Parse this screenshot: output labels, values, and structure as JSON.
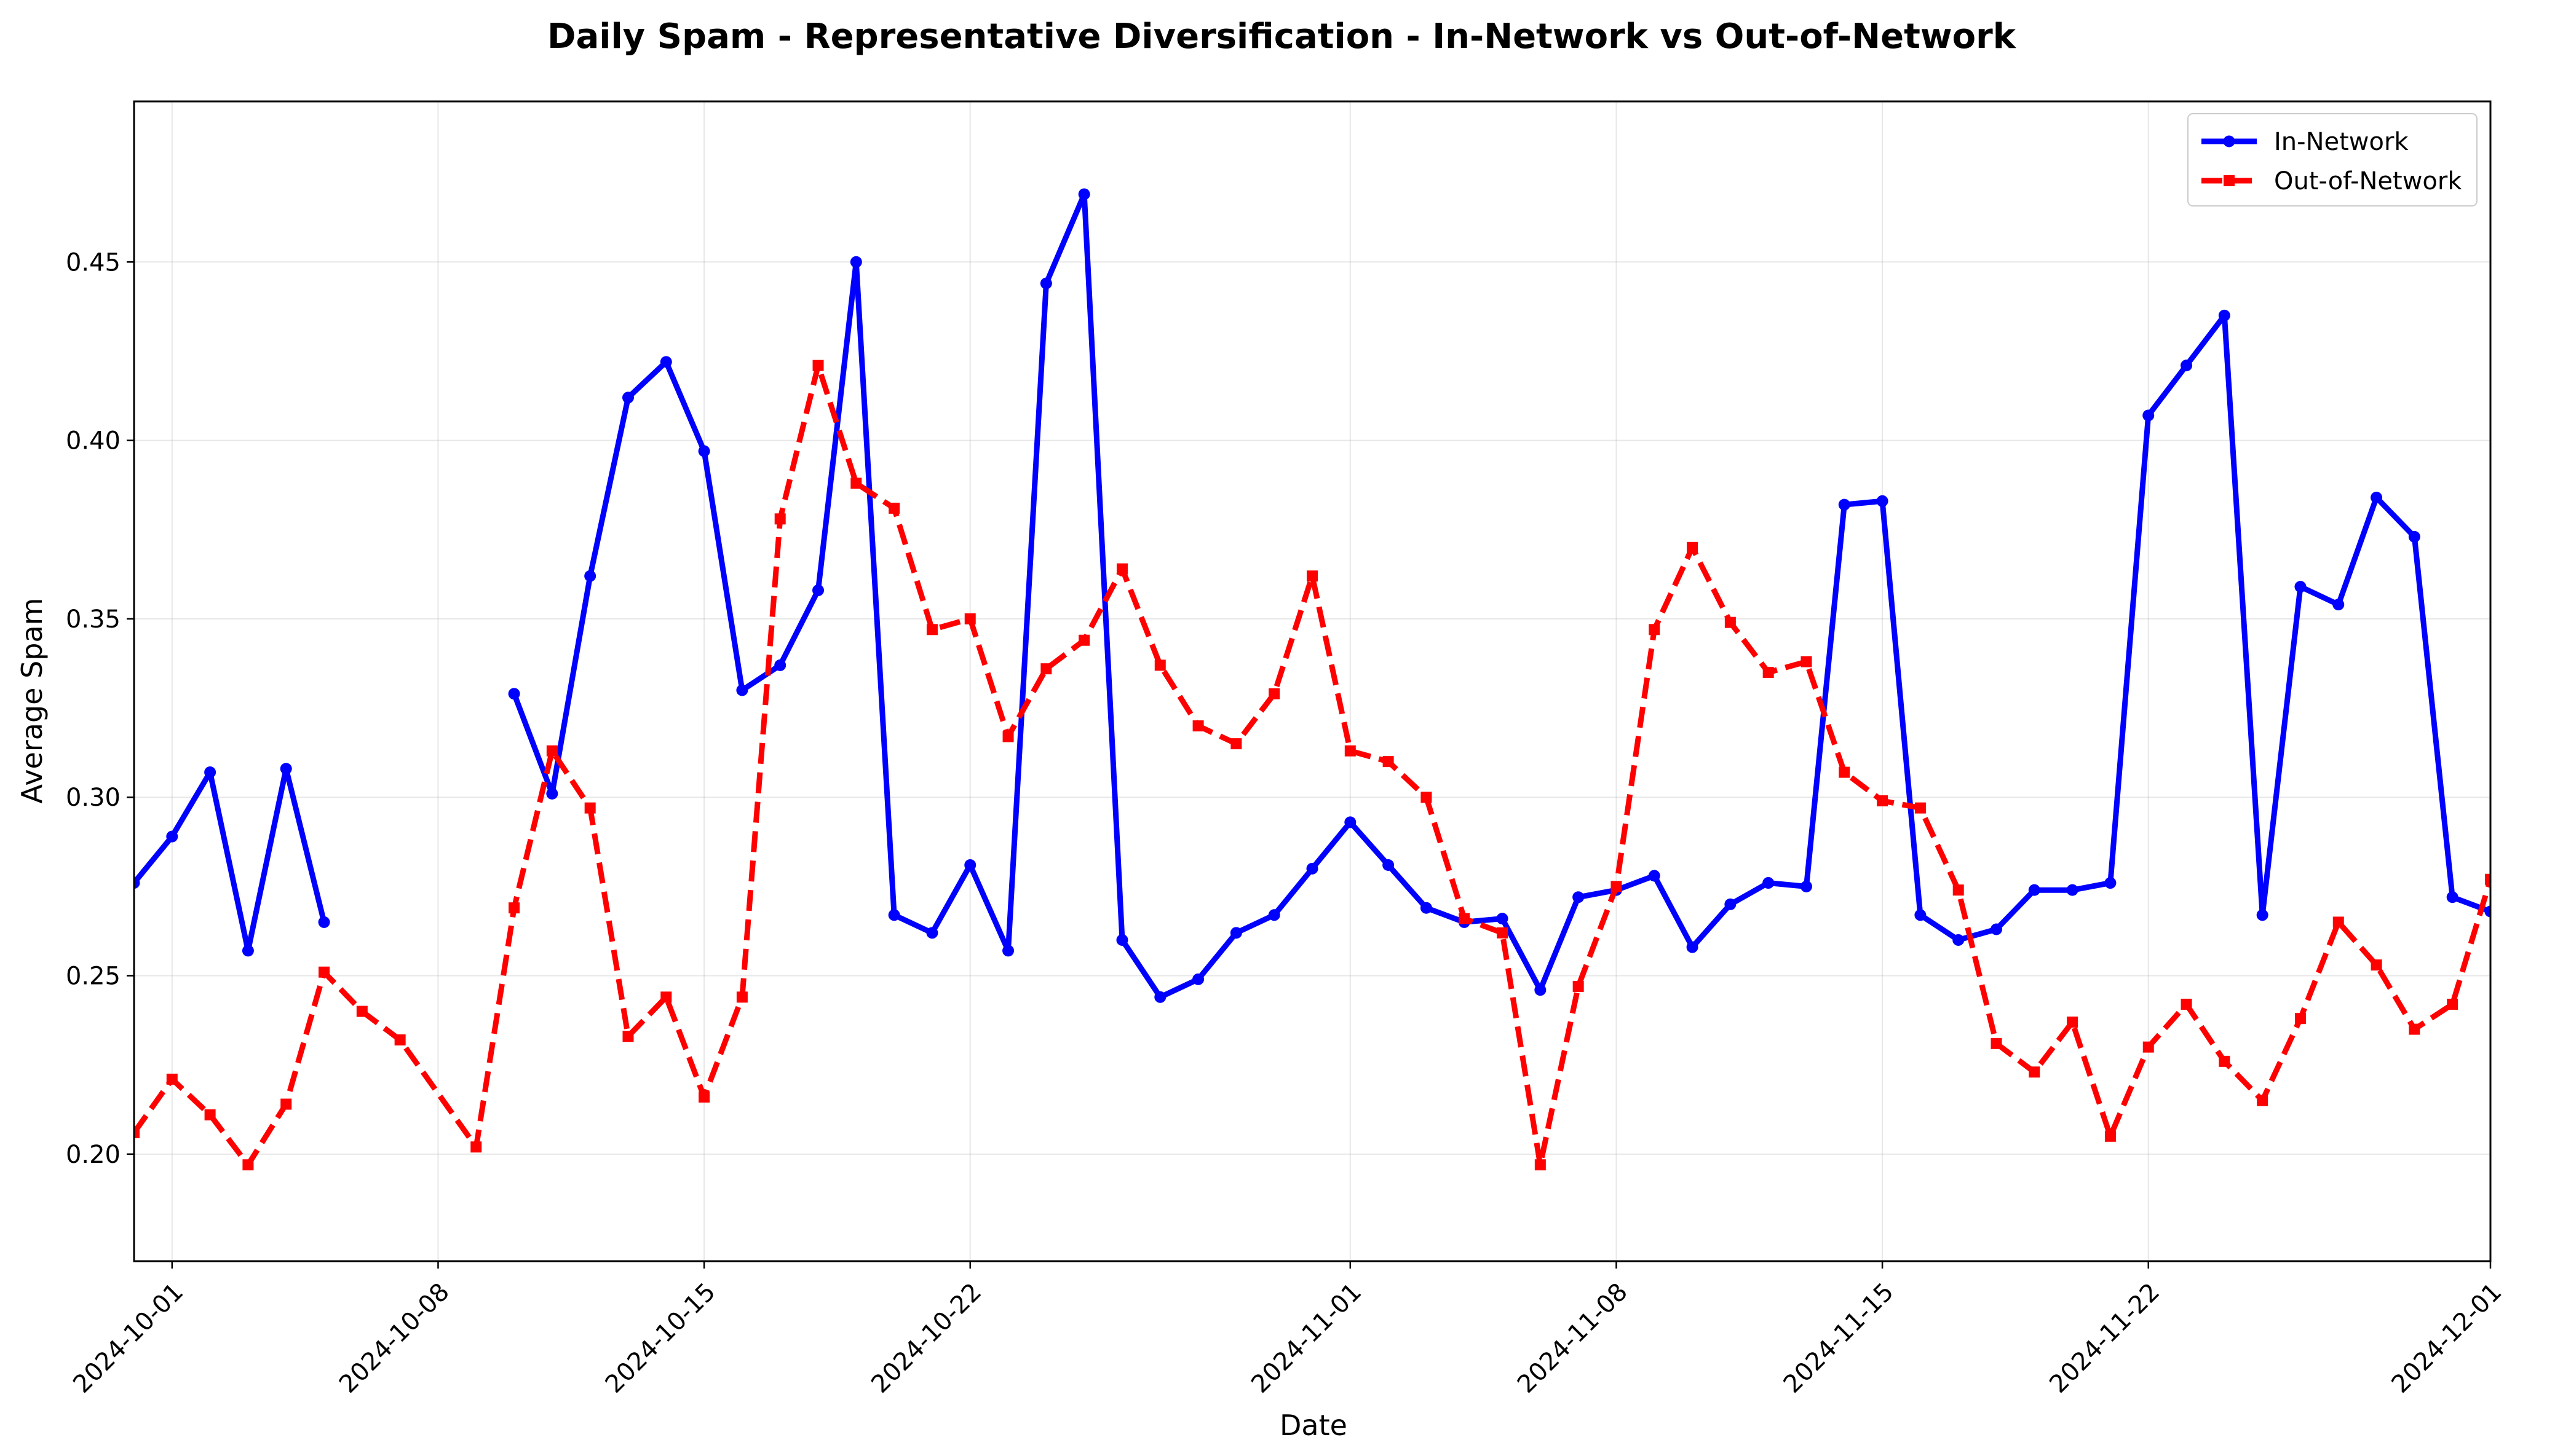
{
  "chart_data": {
    "type": "line",
    "title": "Daily Spam - Representative Diversification - In-Network vs Out-of-Network",
    "xlabel": "Date",
    "ylabel": "Average Spam",
    "xlim": [
      "2024-09-30",
      "2024-12-01"
    ],
    "ylim": [
      0.17,
      0.495
    ],
    "x_ticks": [
      "2024-10-01",
      "2024-10-08",
      "2024-10-15",
      "2024-10-22",
      "2024-11-01",
      "2024-11-08",
      "2024-11-15",
      "2024-11-22",
      "2024-12-01"
    ],
    "y_ticks": [
      "0.20",
      "0.25",
      "0.30",
      "0.35",
      "0.40",
      "0.45"
    ],
    "y_tick_values": [
      0.2,
      0.25,
      0.3,
      0.35,
      0.4,
      0.45
    ],
    "grid": true,
    "legend_position": "top-right",
    "series": [
      {
        "name": "In-Network",
        "color": "#0000ff",
        "line_style": "solid",
        "marker": "circle",
        "points": [
          [
            "2024-09-30",
            0.276
          ],
          [
            "2024-10-01",
            0.289
          ],
          [
            "2024-10-02",
            0.307
          ],
          [
            "2024-10-03",
            0.257
          ],
          [
            "2024-10-04",
            0.308
          ],
          [
            "2024-10-05",
            0.265
          ],
          null,
          [
            "2024-10-10",
            0.329
          ],
          [
            "2024-10-11",
            0.301
          ],
          [
            "2024-10-12",
            0.362
          ],
          [
            "2024-10-13",
            0.412
          ],
          [
            "2024-10-14",
            0.422
          ],
          [
            "2024-10-15",
            0.397
          ],
          [
            "2024-10-16",
            0.33
          ],
          [
            "2024-10-17",
            0.337
          ],
          [
            "2024-10-18",
            0.358
          ],
          [
            "2024-10-19",
            0.45
          ],
          [
            "2024-10-20",
            0.267
          ],
          [
            "2024-10-21",
            0.262
          ],
          [
            "2024-10-22",
            0.281
          ],
          [
            "2024-10-23",
            0.257
          ],
          [
            "2024-10-24",
            0.444
          ],
          [
            "2024-10-25",
            0.469
          ],
          [
            "2024-10-26",
            0.26
          ],
          [
            "2024-10-27",
            0.244
          ],
          [
            "2024-10-28",
            0.249
          ],
          [
            "2024-10-29",
            0.262
          ],
          [
            "2024-10-30",
            0.267
          ],
          [
            "2024-10-31",
            0.28
          ],
          [
            "2024-11-01",
            0.293
          ],
          [
            "2024-11-02",
            0.281
          ],
          [
            "2024-11-03",
            0.269
          ],
          [
            "2024-11-04",
            0.265
          ],
          [
            "2024-11-05",
            0.266
          ],
          [
            "2024-11-06",
            0.246
          ],
          [
            "2024-11-07",
            0.272
          ],
          [
            "2024-11-08",
            0.274
          ],
          [
            "2024-11-09",
            0.278
          ],
          [
            "2024-11-10",
            0.258
          ],
          [
            "2024-11-11",
            0.27
          ],
          [
            "2024-11-12",
            0.276
          ],
          [
            "2024-11-13",
            0.275
          ],
          [
            "2024-11-14",
            0.382
          ],
          [
            "2024-11-15",
            0.383
          ],
          [
            "2024-11-16",
            0.267
          ],
          [
            "2024-11-17",
            0.26
          ],
          [
            "2024-11-18",
            0.263
          ],
          [
            "2024-11-19",
            0.274
          ],
          [
            "2024-11-20",
            0.274
          ],
          [
            "2024-11-21",
            0.276
          ],
          [
            "2024-11-22",
            0.407
          ],
          [
            "2024-11-23",
            0.421
          ],
          [
            "2024-11-24",
            0.435
          ],
          [
            "2024-11-25",
            0.267
          ],
          [
            "2024-11-26",
            0.359
          ],
          [
            "2024-11-27",
            0.354
          ],
          [
            "2024-11-28",
            0.384
          ],
          [
            "2024-11-29",
            0.373
          ],
          [
            "2024-11-30",
            0.272
          ],
          [
            "2024-12-01",
            0.268
          ]
        ]
      },
      {
        "name": "Out-of-Network",
        "color": "#ff0000",
        "line_style": "dashed",
        "marker": "square",
        "points": [
          [
            "2024-09-30",
            0.206
          ],
          [
            "2024-10-01",
            0.221
          ],
          [
            "2024-10-02",
            0.211
          ],
          [
            "2024-10-03",
            0.197
          ],
          [
            "2024-10-04",
            0.214
          ],
          [
            "2024-10-05",
            0.251
          ],
          [
            "2024-10-06",
            0.24
          ],
          [
            "2024-10-07",
            0.232
          ],
          [
            "2024-10-09",
            0.202
          ],
          [
            "2024-10-10",
            0.269
          ],
          [
            "2024-10-11",
            0.313
          ],
          [
            "2024-10-12",
            0.297
          ],
          [
            "2024-10-13",
            0.233
          ],
          [
            "2024-10-14",
            0.244
          ],
          [
            "2024-10-15",
            0.216
          ],
          [
            "2024-10-16",
            0.244
          ],
          [
            "2024-10-17",
            0.378
          ],
          [
            "2024-10-18",
            0.421
          ],
          [
            "2024-10-19",
            0.388
          ],
          [
            "2024-10-20",
            0.381
          ],
          [
            "2024-10-21",
            0.347
          ],
          [
            "2024-10-22",
            0.35
          ],
          [
            "2024-10-23",
            0.317
          ],
          [
            "2024-10-24",
            0.336
          ],
          [
            "2024-10-25",
            0.344
          ],
          [
            "2024-10-26",
            0.364
          ],
          [
            "2024-10-27",
            0.337
          ],
          [
            "2024-10-28",
            0.32
          ],
          [
            "2024-10-29",
            0.315
          ],
          [
            "2024-10-30",
            0.329
          ],
          [
            "2024-10-31",
            0.362
          ],
          [
            "2024-11-01",
            0.313
          ],
          [
            "2024-11-02",
            0.31
          ],
          [
            "2024-11-03",
            0.3
          ],
          [
            "2024-11-04",
            0.266
          ],
          [
            "2024-11-05",
            0.262
          ],
          [
            "2024-11-06",
            0.197
          ],
          [
            "2024-11-07",
            0.247
          ],
          [
            "2024-11-08",
            0.275
          ],
          [
            "2024-11-09",
            0.347
          ],
          [
            "2024-11-10",
            0.37
          ],
          [
            "2024-11-11",
            0.349
          ],
          [
            "2024-11-12",
            0.335
          ],
          [
            "2024-11-13",
            0.338
          ],
          [
            "2024-11-14",
            0.307
          ],
          [
            "2024-11-15",
            0.299
          ],
          [
            "2024-11-16",
            0.297
          ],
          [
            "2024-11-17",
            0.274
          ],
          [
            "2024-11-18",
            0.231
          ],
          [
            "2024-11-19",
            0.223
          ],
          [
            "2024-11-20",
            0.237
          ],
          [
            "2024-11-21",
            0.205
          ],
          [
            "2024-11-22",
            0.23
          ],
          [
            "2024-11-23",
            0.242
          ],
          [
            "2024-11-24",
            0.226
          ],
          [
            "2024-11-25",
            0.215
          ],
          [
            "2024-11-26",
            0.238
          ],
          [
            "2024-11-27",
            0.265
          ],
          [
            "2024-11-28",
            0.253
          ],
          [
            "2024-11-29",
            0.235
          ],
          [
            "2024-11-30",
            0.242
          ],
          [
            "2024-12-01",
            0.277
          ]
        ]
      }
    ]
  }
}
